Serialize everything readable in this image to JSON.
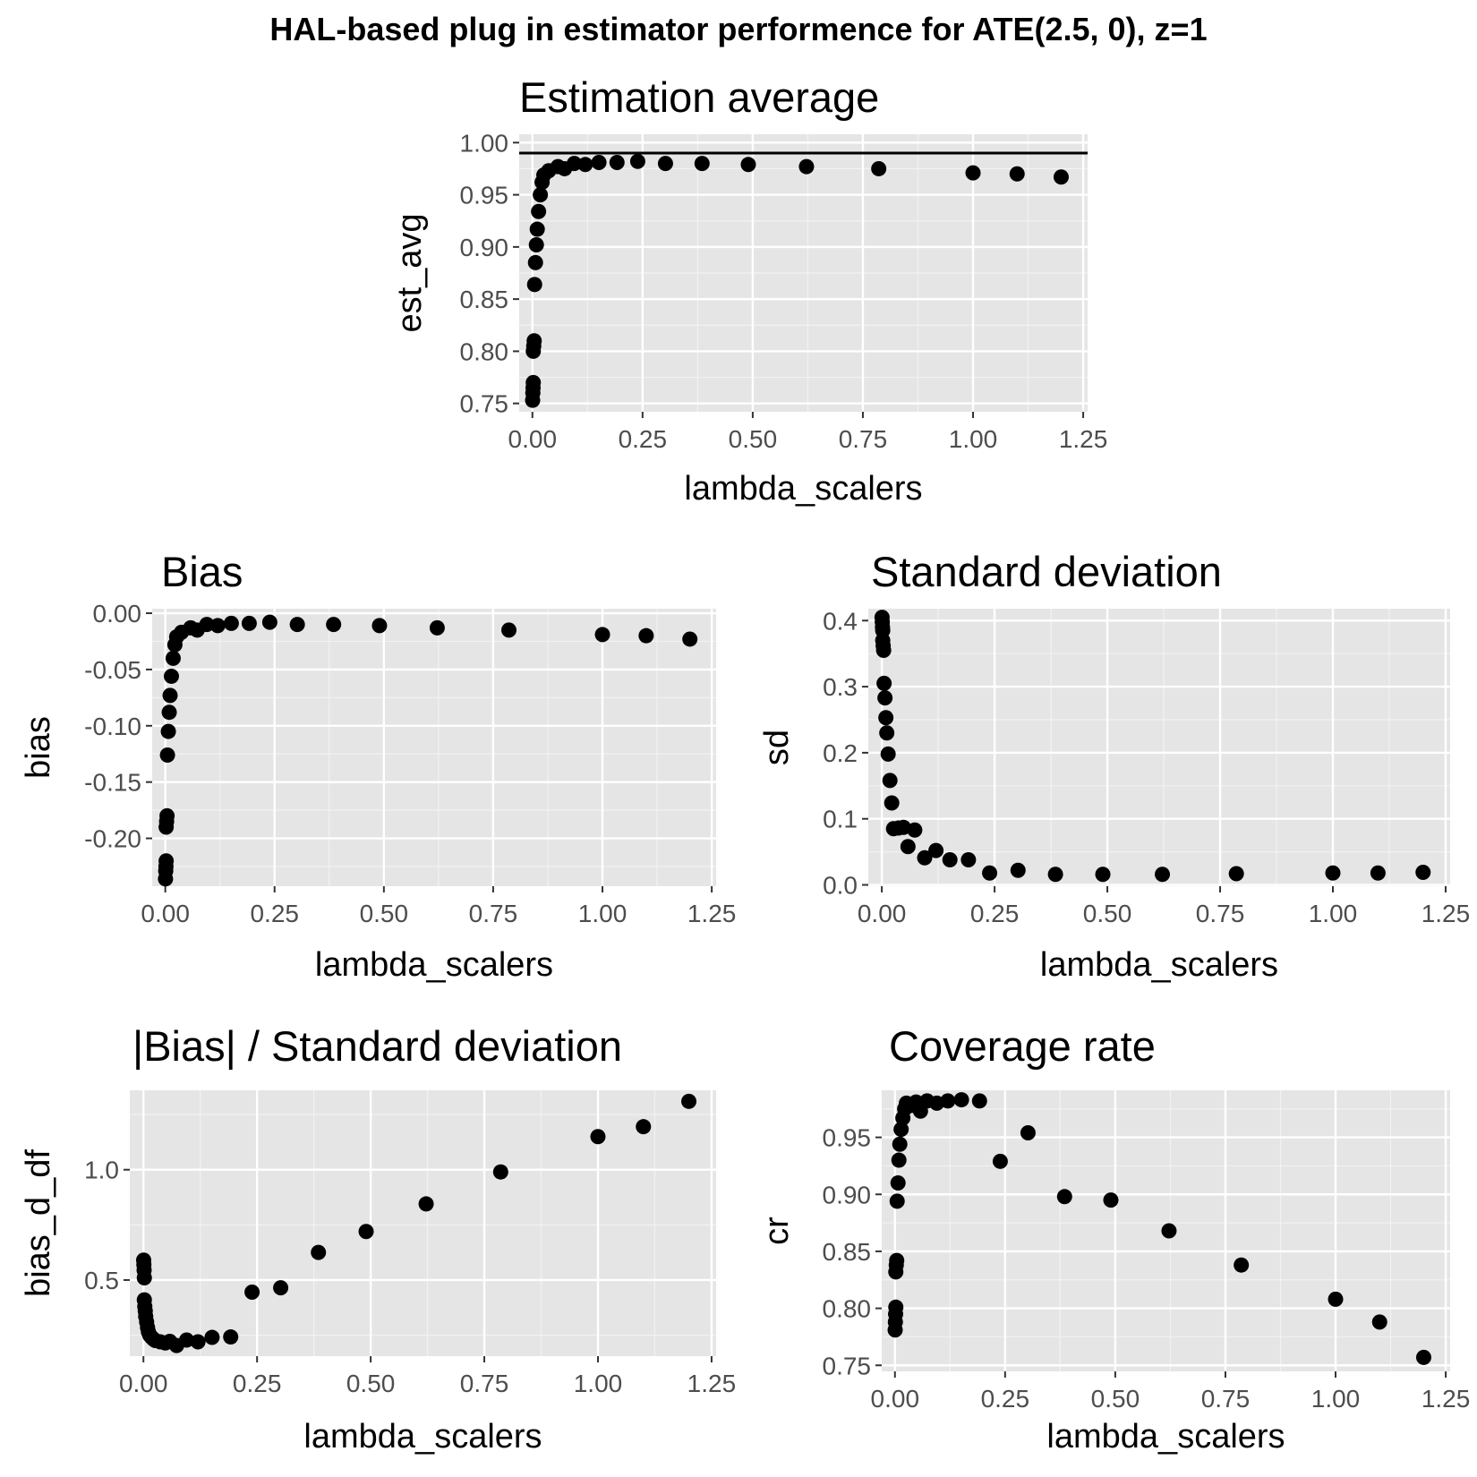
{
  "figure": {
    "title": "HAL-based plug in estimator performence for ATE(2.5, 0), z=1"
  },
  "colors": {
    "panel_bg": "#e5e5e5",
    "grid_major": "#ffffff",
    "grid_minor": "#f2f2f2",
    "point": "#000000",
    "axis_text": "#4d4d4d",
    "title_text": "#000000"
  },
  "chart_data": [
    {
      "type": "scatter",
      "title": "Estimation average",
      "xlabel": "lambda_scalers",
      "ylabel": "est_avg",
      "xlim": [
        -0.03,
        1.26
      ],
      "ylim": [
        0.742,
        1.008
      ],
      "xticks": [
        "0.00",
        "0.25",
        "0.50",
        "0.75",
        "1.00",
        "1.25"
      ],
      "yticks": [
        "0.75",
        "0.80",
        "0.85",
        "0.90",
        "0.95",
        "1.00"
      ],
      "hline": 0.99,
      "grid": true,
      "points": [
        [
          0.0005,
          0.753
        ],
        [
          0.001,
          0.76
        ],
        [
          0.0015,
          0.765
        ],
        [
          0.002,
          0.77
        ],
        [
          0.002,
          0.8
        ],
        [
          0.003,
          0.805
        ],
        [
          0.004,
          0.81
        ],
        [
          0.005,
          0.864
        ],
        [
          0.007,
          0.885
        ],
        [
          0.009,
          0.902
        ],
        [
          0.011,
          0.917
        ],
        [
          0.014,
          0.934
        ],
        [
          0.018,
          0.95
        ],
        [
          0.022,
          0.962
        ],
        [
          0.026,
          0.969
        ],
        [
          0.037,
          0.973
        ],
        [
          0.058,
          0.977
        ],
        [
          0.073,
          0.975
        ],
        [
          0.095,
          0.98
        ],
        [
          0.12,
          0.979
        ],
        [
          0.151,
          0.981
        ],
        [
          0.192,
          0.981
        ],
        [
          0.239,
          0.982
        ],
        [
          0.302,
          0.98
        ],
        [
          0.385,
          0.98
        ],
        [
          0.49,
          0.979
        ],
        [
          0.622,
          0.977
        ],
        [
          0.786,
          0.975
        ],
        [
          1.0,
          0.971
        ],
        [
          1.1,
          0.97
        ],
        [
          1.2,
          0.967
        ]
      ]
    },
    {
      "type": "scatter",
      "title": "Bias",
      "xlabel": "lambda_scalers",
      "ylabel": "bias",
      "xlim": [
        -0.03,
        1.26
      ],
      "ylim": [
        -0.2425,
        0.004
      ],
      "xticks": [
        "0.00",
        "0.25",
        "0.50",
        "0.75",
        "1.00",
        "1.25"
      ],
      "yticks": [
        "-0.20",
        "-0.15",
        "-0.10",
        "-0.05",
        "0.00"
      ],
      "grid": true,
      "points": [
        [
          0.0005,
          -0.236
        ],
        [
          0.001,
          -0.229
        ],
        [
          0.0015,
          -0.225
        ],
        [
          0.002,
          -0.22
        ],
        [
          0.002,
          -0.19
        ],
        [
          0.003,
          -0.185
        ],
        [
          0.004,
          -0.18
        ],
        [
          0.005,
          -0.126
        ],
        [
          0.007,
          -0.105
        ],
        [
          0.009,
          -0.088
        ],
        [
          0.011,
          -0.073
        ],
        [
          0.014,
          -0.056
        ],
        [
          0.018,
          -0.04
        ],
        [
          0.022,
          -0.028
        ],
        [
          0.026,
          -0.021
        ],
        [
          0.037,
          -0.017
        ],
        [
          0.058,
          -0.013
        ],
        [
          0.073,
          -0.015
        ],
        [
          0.095,
          -0.01
        ],
        [
          0.12,
          -0.011
        ],
        [
          0.151,
          -0.009
        ],
        [
          0.192,
          -0.009
        ],
        [
          0.239,
          -0.008
        ],
        [
          0.302,
          -0.01
        ],
        [
          0.385,
          -0.01
        ],
        [
          0.49,
          -0.011
        ],
        [
          0.622,
          -0.013
        ],
        [
          0.786,
          -0.015
        ],
        [
          1.0,
          -0.019
        ],
        [
          1.1,
          -0.02
        ],
        [
          1.2,
          -0.023
        ]
      ]
    },
    {
      "type": "scatter",
      "title": "Standard deviation",
      "xlabel": "lambda_scalers",
      "ylabel": "sd",
      "xlim": [
        -0.03,
        1.26
      ],
      "ylim": [
        -0.002,
        0.418
      ],
      "xticks": [
        "0.00",
        "0.25",
        "0.50",
        "0.75",
        "1.00",
        "1.25"
      ],
      "yticks": [
        "0.0",
        "0.1",
        "0.2",
        "0.3",
        "0.4"
      ],
      "grid": true,
      "points": [
        [
          0.0005,
          0.405
        ],
        [
          0.001,
          0.398
        ],
        [
          0.0015,
          0.39
        ],
        [
          0.002,
          0.385
        ],
        [
          0.002,
          0.37
        ],
        [
          0.003,
          0.362
        ],
        [
          0.004,
          0.355
        ],
        [
          0.005,
          0.305
        ],
        [
          0.007,
          0.283
        ],
        [
          0.009,
          0.253
        ],
        [
          0.011,
          0.23
        ],
        [
          0.014,
          0.198
        ],
        [
          0.018,
          0.158
        ],
        [
          0.022,
          0.124
        ],
        [
          0.026,
          0.085
        ],
        [
          0.037,
          0.086
        ],
        [
          0.048,
          0.087
        ],
        [
          0.058,
          0.058
        ],
        [
          0.073,
          0.083
        ],
        [
          0.095,
          0.041
        ],
        [
          0.12,
          0.052
        ],
        [
          0.151,
          0.038
        ],
        [
          0.192,
          0.038
        ],
        [
          0.239,
          0.018
        ],
        [
          0.302,
          0.022
        ],
        [
          0.385,
          0.016
        ],
        [
          0.49,
          0.016
        ],
        [
          0.622,
          0.016
        ],
        [
          0.786,
          0.017
        ],
        [
          1.0,
          0.018
        ],
        [
          1.1,
          0.018
        ],
        [
          1.2,
          0.019
        ]
      ]
    },
    {
      "type": "scatter",
      "title": "|Bias| / Standard deviation",
      "xlabel": "lambda_scalers",
      "ylabel": "bias_d_df",
      "xlim": [
        -0.03,
        1.26
      ],
      "ylim": [
        0.155,
        1.36
      ],
      "xticks": [
        "0.00",
        "0.25",
        "0.50",
        "0.75",
        "1.00",
        "1.25"
      ],
      "yticks": [
        "0.5",
        "1.0"
      ],
      "grid": true,
      "points": [
        [
          0.0005,
          0.59
        ],
        [
          0.001,
          0.57
        ],
        [
          0.0015,
          0.545
        ],
        [
          0.002,
          0.51
        ],
        [
          0.002,
          0.41
        ],
        [
          0.003,
          0.38
        ],
        [
          0.004,
          0.36
        ],
        [
          0.005,
          0.335
        ],
        [
          0.007,
          0.31
        ],
        [
          0.009,
          0.285
        ],
        [
          0.011,
          0.265
        ],
        [
          0.014,
          0.25
        ],
        [
          0.018,
          0.24
        ],
        [
          0.022,
          0.232
        ],
        [
          0.026,
          0.226
        ],
        [
          0.037,
          0.22
        ],
        [
          0.048,
          0.215
        ],
        [
          0.058,
          0.222
        ],
        [
          0.073,
          0.203
        ],
        [
          0.095,
          0.228
        ],
        [
          0.12,
          0.22
        ],
        [
          0.151,
          0.24
        ],
        [
          0.192,
          0.242
        ],
        [
          0.239,
          0.445
        ],
        [
          0.302,
          0.465
        ],
        [
          0.385,
          0.625
        ],
        [
          0.49,
          0.72
        ],
        [
          0.622,
          0.845
        ],
        [
          0.786,
          0.99
        ],
        [
          1.0,
          1.15
        ],
        [
          1.1,
          1.195
        ],
        [
          1.2,
          1.31
        ]
      ]
    },
    {
      "type": "scatter",
      "title": "Coverage rate",
      "xlabel": "lambda_scalers",
      "ylabel": "cr",
      "xlim": [
        -0.03,
        1.26
      ],
      "ylim": [
        0.7447,
        0.9913
      ],
      "xticks": [
        "0.00",
        "0.25",
        "0.50",
        "0.75",
        "1.00",
        "1.25"
      ],
      "yticks": [
        "0.75",
        "0.80",
        "0.85",
        "0.90",
        "0.95"
      ],
      "grid": true,
      "points": [
        [
          0.0005,
          0.781
        ],
        [
          0.001,
          0.788
        ],
        [
          0.0015,
          0.795
        ],
        [
          0.002,
          0.801
        ],
        [
          0.002,
          0.832
        ],
        [
          0.003,
          0.838
        ],
        [
          0.004,
          0.842
        ],
        [
          0.005,
          0.894
        ],
        [
          0.007,
          0.91
        ],
        [
          0.009,
          0.93
        ],
        [
          0.011,
          0.944
        ],
        [
          0.014,
          0.957
        ],
        [
          0.018,
          0.967
        ],
        [
          0.022,
          0.975
        ],
        [
          0.026,
          0.98
        ],
        [
          0.037,
          0.978
        ],
        [
          0.048,
          0.981
        ],
        [
          0.058,
          0.973
        ],
        [
          0.073,
          0.982
        ],
        [
          0.095,
          0.98
        ],
        [
          0.12,
          0.982
        ],
        [
          0.151,
          0.983
        ],
        [
          0.192,
          0.982
        ],
        [
          0.239,
          0.929
        ],
        [
          0.302,
          0.954
        ],
        [
          0.385,
          0.898
        ],
        [
          0.49,
          0.895
        ],
        [
          0.622,
          0.868
        ],
        [
          0.786,
          0.838
        ],
        [
          1.0,
          0.808
        ],
        [
          1.1,
          0.788
        ],
        [
          1.2,
          0.757
        ]
      ]
    }
  ]
}
